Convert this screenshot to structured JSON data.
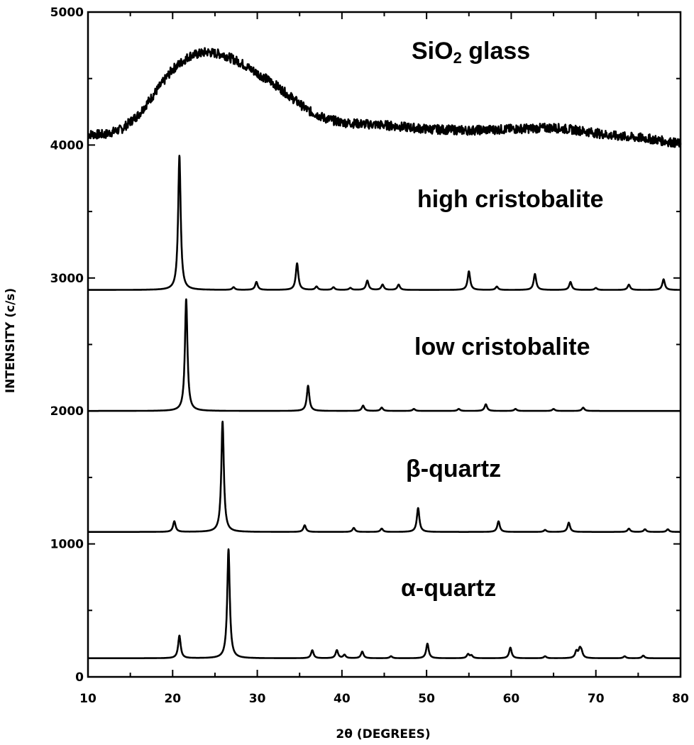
{
  "chart_data": {
    "type": "line",
    "xlabel": "2θ (DEGREES)",
    "ylabel": "INTENSITY (c/s)",
    "xlim": [
      10,
      80
    ],
    "ylim": [
      0,
      5000
    ],
    "x_ticks": [
      "10",
      "20",
      "30",
      "40",
      "50",
      "60",
      "70",
      "80"
    ],
    "y_ticks": [
      "0",
      "1000",
      "2000",
      "3000",
      "4000",
      "5000"
    ],
    "grid": false,
    "legend": "none (series labels placed above each trace)",
    "line_color": "#000000",
    "series": [
      {
        "name": "SiO₂ glass",
        "type": "amorphous",
        "points": [
          [
            10,
            4080
          ],
          [
            12,
            4080
          ],
          [
            14,
            4120
          ],
          [
            16,
            4230
          ],
          [
            18,
            4400
          ],
          [
            20,
            4570
          ],
          [
            22,
            4670
          ],
          [
            24,
            4700
          ],
          [
            26,
            4680
          ],
          [
            28,
            4620
          ],
          [
            30,
            4540
          ],
          [
            32,
            4460
          ],
          [
            34,
            4360
          ],
          [
            36,
            4260
          ],
          [
            38,
            4200
          ],
          [
            40,
            4170
          ],
          [
            42,
            4160
          ],
          [
            45,
            4150
          ],
          [
            50,
            4120
          ],
          [
            55,
            4110
          ],
          [
            60,
            4120
          ],
          [
            65,
            4130
          ],
          [
            68,
            4110
          ],
          [
            72,
            4070
          ],
          [
            76,
            4050
          ],
          [
            80,
            4010
          ]
        ]
      },
      {
        "name": "high cristobalite",
        "baseline": 2910,
        "peaks": [
          [
            20.8,
            1010
          ],
          [
            27.2,
            20
          ],
          [
            29.9,
            60
          ],
          [
            34.7,
            200
          ],
          [
            37.0,
            25
          ],
          [
            39.0,
            20
          ],
          [
            41.0,
            15
          ],
          [
            43.0,
            70
          ],
          [
            44.8,
            40
          ],
          [
            46.7,
            40
          ],
          [
            55.0,
            140
          ],
          [
            58.3,
            25
          ],
          [
            62.8,
            120
          ],
          [
            67.0,
            60
          ],
          [
            70.0,
            15
          ],
          [
            73.9,
            40
          ],
          [
            78.0,
            80
          ]
        ]
      },
      {
        "name": "low cristobalite",
        "baseline": 2000,
        "peaks": [
          [
            21.6,
            840
          ],
          [
            36.0,
            190
          ],
          [
            42.5,
            40
          ],
          [
            44.7,
            25
          ],
          [
            48.5,
            15
          ],
          [
            53.8,
            15
          ],
          [
            57.0,
            50
          ],
          [
            60.5,
            15
          ],
          [
            65.0,
            15
          ],
          [
            68.5,
            25
          ]
        ]
      },
      {
        "name": "β-quartz",
        "baseline": 1090,
        "peaks": [
          [
            20.2,
            80
          ],
          [
            25.9,
            830
          ],
          [
            35.6,
            50
          ],
          [
            41.4,
            30
          ],
          [
            44.7,
            25
          ],
          [
            49.0,
            180
          ],
          [
            58.5,
            80
          ],
          [
            64.0,
            15
          ],
          [
            66.8,
            70
          ],
          [
            73.9,
            25
          ],
          [
            75.8,
            20
          ],
          [
            78.5,
            20
          ]
        ]
      },
      {
        "name": "α-quartz",
        "baseline": 140,
        "peaks": [
          [
            20.8,
            170
          ],
          [
            26.6,
            820
          ],
          [
            36.5,
            60
          ],
          [
            39.4,
            60
          ],
          [
            40.3,
            25
          ],
          [
            42.4,
            50
          ],
          [
            45.8,
            15
          ],
          [
            50.1,
            110
          ],
          [
            54.9,
            30
          ],
          [
            55.3,
            20
          ],
          [
            59.9,
            80
          ],
          [
            64.0,
            15
          ],
          [
            67.7,
            50
          ],
          [
            68.1,
            60
          ],
          [
            68.3,
            40
          ],
          [
            73.4,
            15
          ],
          [
            75.6,
            20
          ]
        ]
      }
    ]
  }
}
